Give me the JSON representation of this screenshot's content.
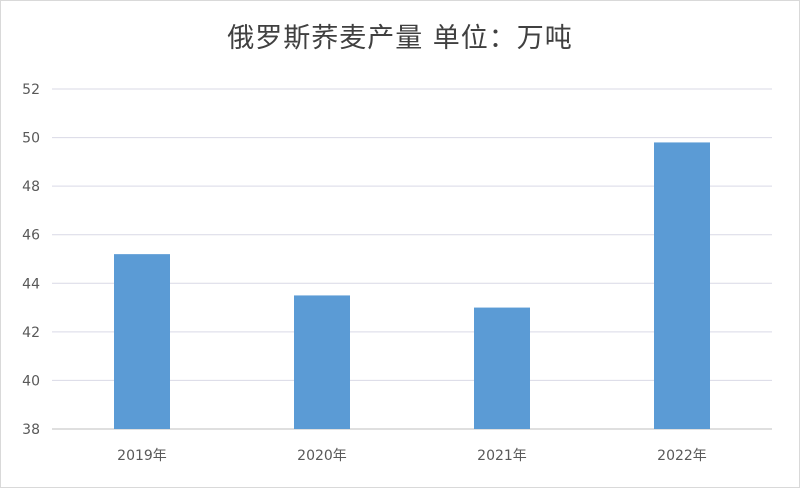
{
  "chart_data": {
    "type": "bar",
    "title": "俄罗斯荞麦产量 单位：万吨",
    "categories": [
      "2019年",
      "2020年",
      "2021年",
      "2022年"
    ],
    "values": [
      45.2,
      43.5,
      43.0,
      49.8
    ],
    "ylim": [
      38,
      52
    ],
    "yticks": [
      38,
      40,
      42,
      44,
      46,
      48,
      50,
      52
    ],
    "grid": true,
    "legend": "none",
    "bar_color": "#5b9bd5",
    "grid_color": "#d9d9e6"
  }
}
